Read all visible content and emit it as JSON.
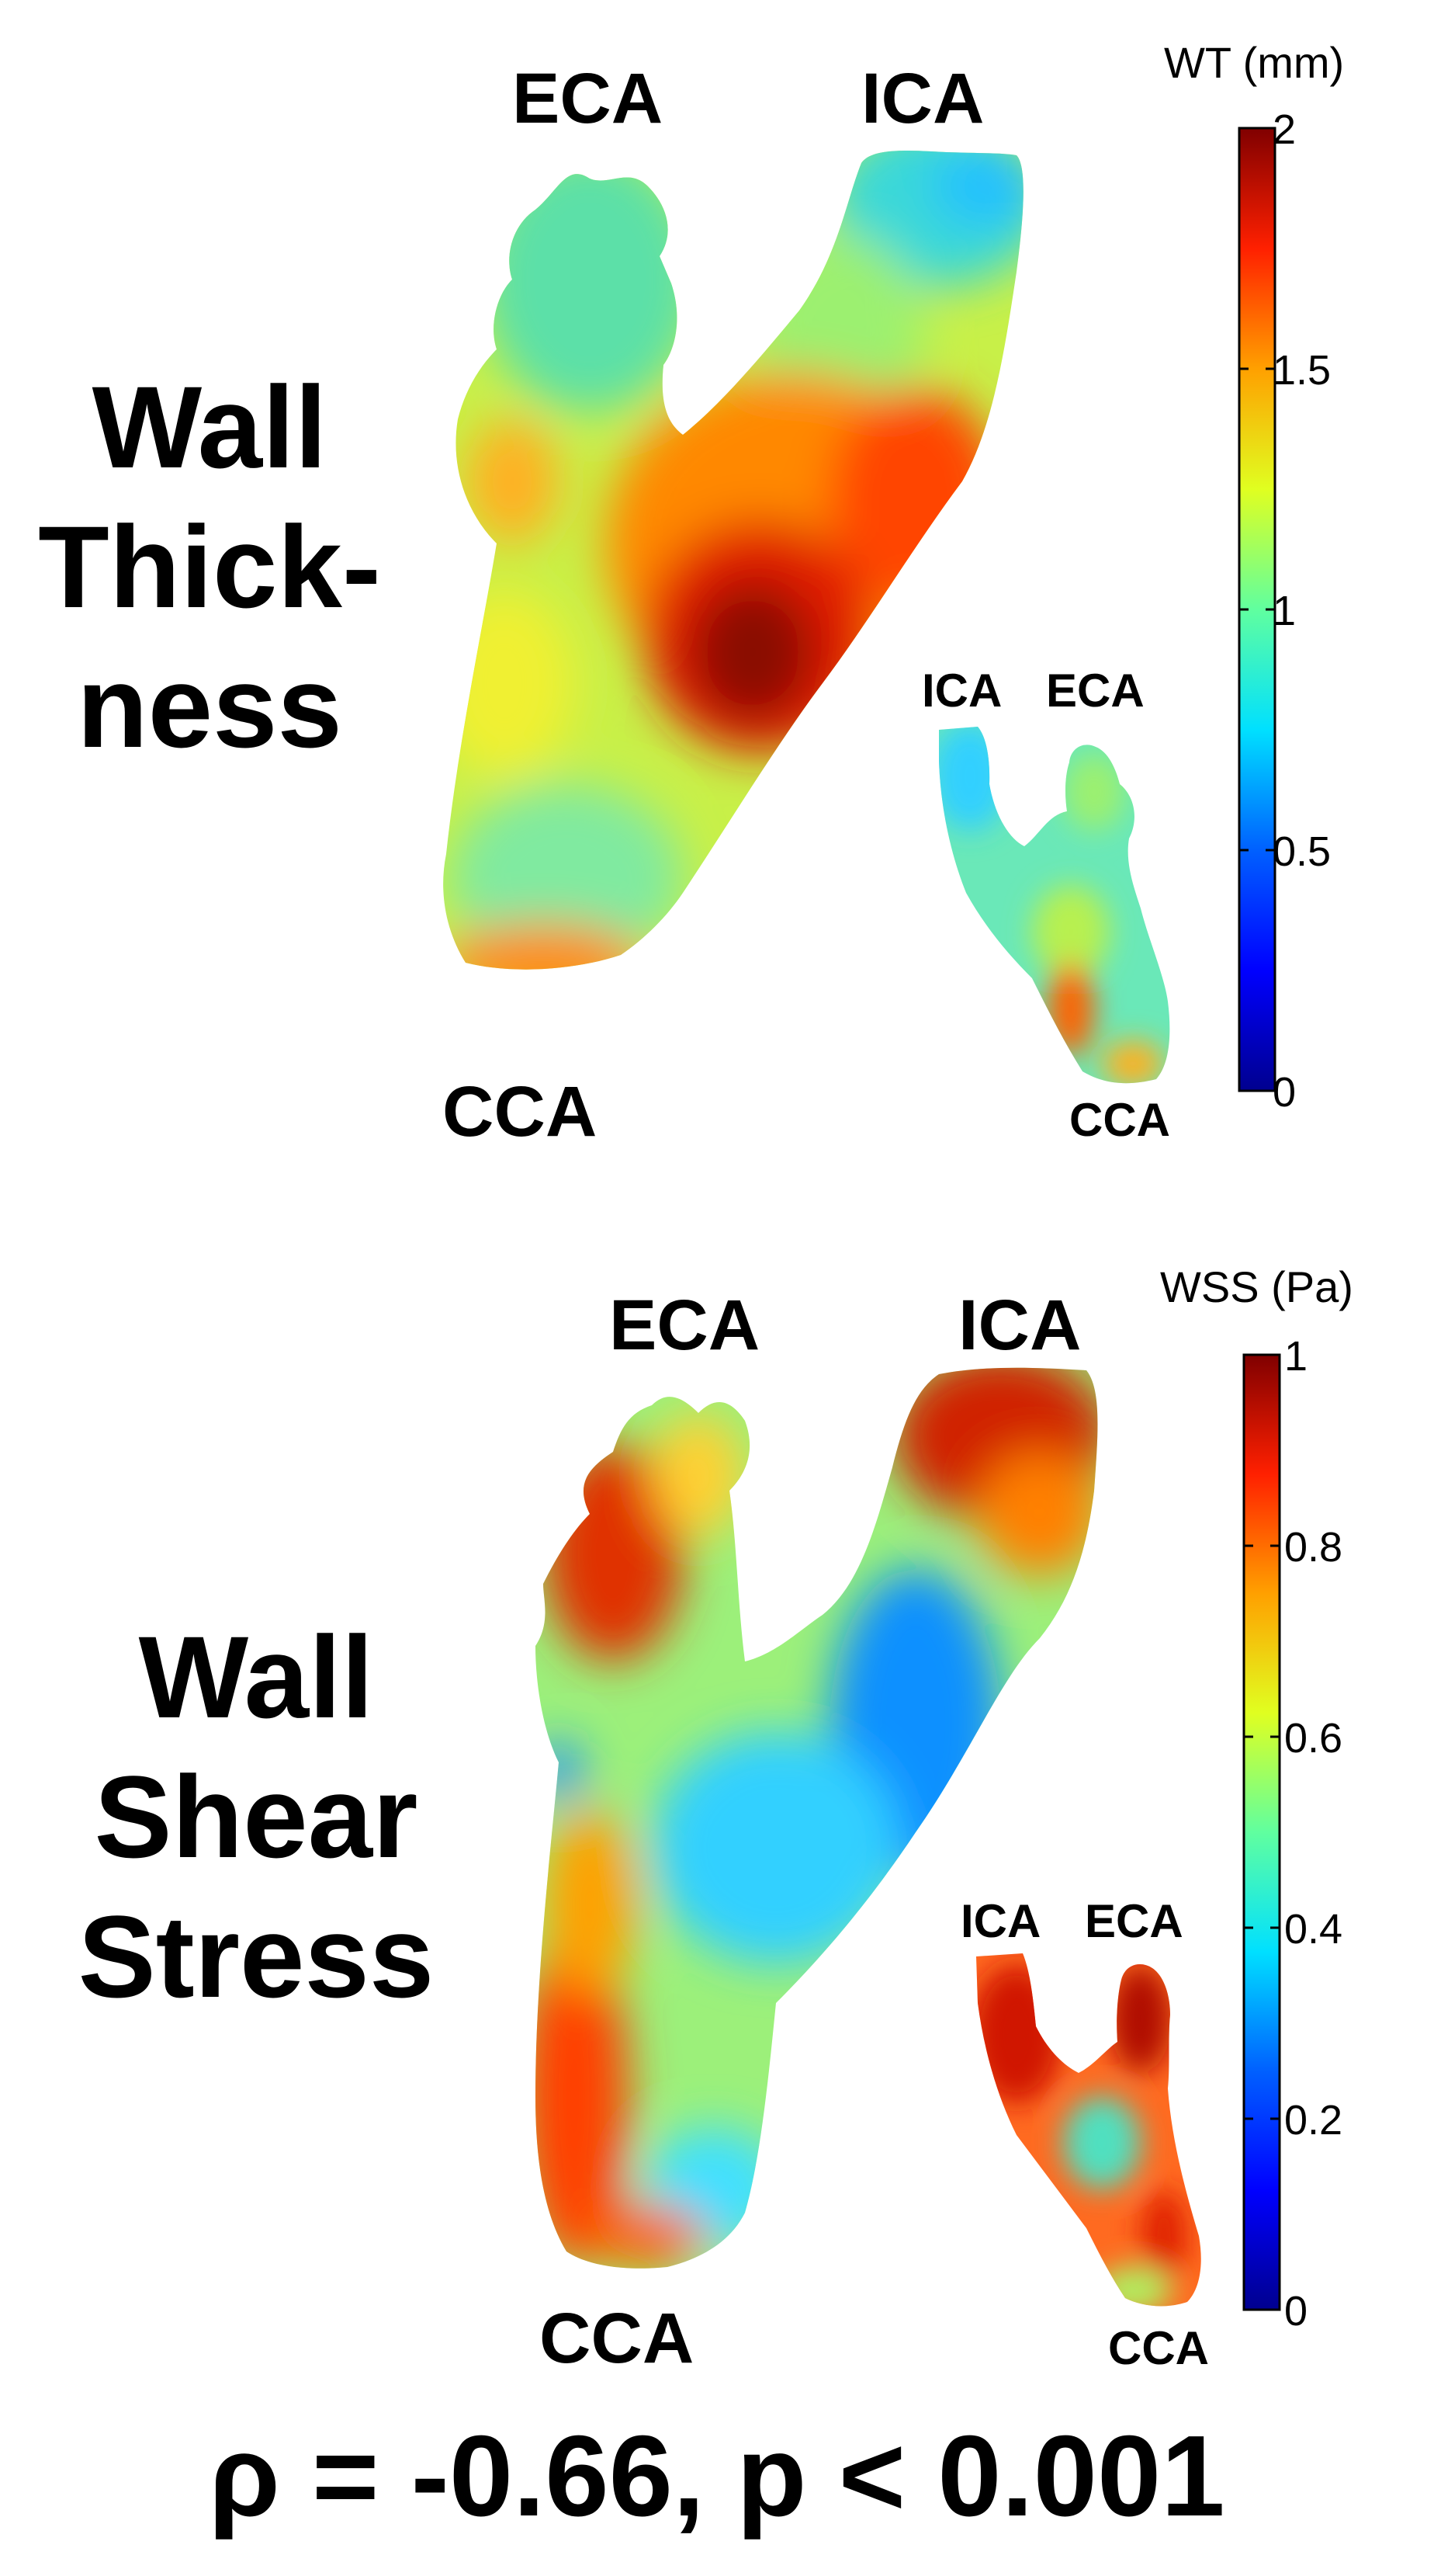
{
  "panels": [
    {
      "id": "wall-thickness",
      "title_lines": [
        "Wall",
        "Thick-",
        "ness"
      ],
      "labels": {
        "large": {
          "eca": "ECA",
          "ica": "ICA",
          "cca": "CCA"
        },
        "small": {
          "ica": "ICA",
          "eca": "ECA",
          "cca": "CCA"
        }
      },
      "colorbar": {
        "title": "WT (mm)",
        "ticks": [
          "2",
          "1.5",
          "1",
          "0.5",
          "0"
        ],
        "min": 0,
        "max": 2
      }
    },
    {
      "id": "wall-shear-stress",
      "title_lines": [
        "Wall",
        "Shear",
        "Stress"
      ],
      "labels": {
        "large": {
          "eca": "ECA",
          "ica": "ICA",
          "cca": "CCA"
        },
        "small": {
          "ica": "ICA",
          "eca": "ECA",
          "cca": "CCA"
        }
      },
      "colorbar": {
        "title": "WSS (Pa)",
        "ticks": [
          "1",
          "0.8",
          "0.6",
          "0.4",
          "0.2",
          "0"
        ],
        "min": 0,
        "max": 1
      }
    }
  ],
  "correlation": "ρ = -0.66, p < 0.001",
  "colormap": "jet",
  "colors": {
    "jet": [
      "#00008f",
      "#0000ff",
      "#0080ff",
      "#00ffff",
      "#80ff80",
      "#ffff00",
      "#ff8000",
      "#ff0000",
      "#800000"
    ],
    "wt_base": "#c8f048",
    "wss_base": "#9cf07a"
  }
}
